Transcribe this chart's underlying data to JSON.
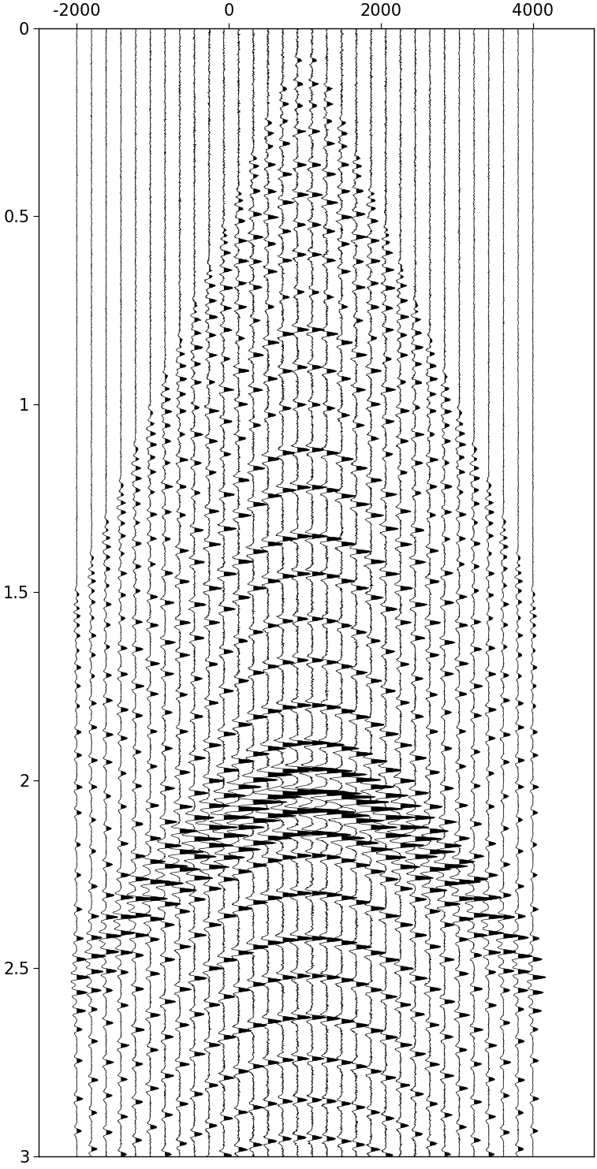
{
  "xlim": [
    -2500,
    4800
  ],
  "ylim": [
    3.0,
    0.0
  ],
  "xticks": [
    -2000,
    0,
    2000,
    4000
  ],
  "yticks": [
    0,
    0.5,
    1.0,
    1.5,
    2.0,
    2.5,
    3.0
  ],
  "num_traces": 32,
  "dt": 0.001,
  "t_max": 3.0,
  "bg_color": "#ffffff",
  "line_color": "#000000",
  "fill_color": "#000000",
  "figsize": [
    7.57,
    14.83
  ],
  "dpi": 100,
  "dominant_freq": 35,
  "noise_level": 0.04,
  "trace_scale": 210,
  "seed": 12345,
  "reflection_times": [
    0.07,
    0.14,
    0.2,
    0.27,
    0.36,
    0.44,
    0.52,
    0.6,
    0.7,
    0.8,
    0.9,
    1.0,
    1.12,
    1.22,
    1.35,
    1.45,
    1.57,
    1.68,
    1.8,
    1.9,
    1.97,
    2.03,
    2.08,
    2.14,
    2.2,
    2.3,
    2.42,
    2.52,
    2.63,
    2.74,
    2.85,
    2.95
  ],
  "reflection_amps": [
    0.25,
    0.35,
    0.3,
    0.45,
    0.55,
    0.65,
    0.5,
    0.55,
    0.4,
    0.7,
    0.6,
    0.5,
    0.75,
    0.85,
    0.95,
    0.8,
    0.65,
    0.7,
    0.9,
    1.1,
    1.6,
    2.2,
    1.8,
    1.5,
    0.9,
    0.95,
    1.0,
    0.8,
    0.85,
    0.7,
    0.6,
    0.55
  ],
  "x_positions": [
    -2000,
    -1806,
    -1613,
    -1419,
    -1226,
    -1032,
    -839,
    -645,
    -452,
    -258,
    -65,
    129,
    323,
    516,
    710,
    903,
    1097,
    1290,
    1484,
    1677,
    1871,
    2065,
    2258,
    2452,
    2645,
    2839,
    3032,
    3226,
    3419,
    3613,
    3806,
    4000
  ]
}
